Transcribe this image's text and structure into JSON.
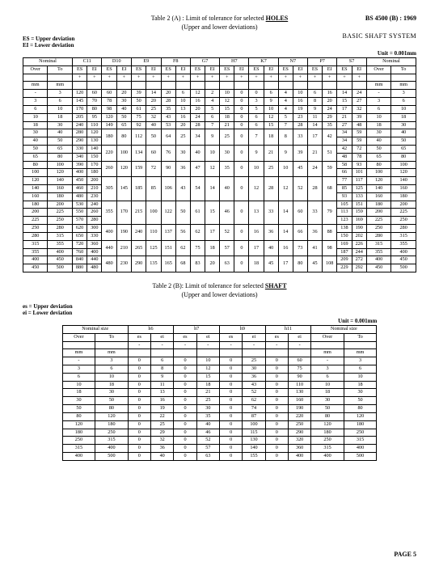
{
  "header": {
    "titleA_pre": "Table 2 (A) : Limit of tolerance for selected ",
    "titleA_bold": "HOLES",
    "titleB_pre": "Table 2 (B): Limit of tolerance for selected ",
    "titleB_bold": "SHAFT",
    "subtitle": "(Upper and lower deviations)",
    "bs": "BS 4500 (B) : 1969",
    "basic": "BASIC SHAFT SYSTEM",
    "ES": "ES = Upper deviation",
    "EI": "EI = Lower deviation",
    "es": "es = Upper deviation",
    "ei": "ei = Lower deviation",
    "unit": "Unit = 0.001mm",
    "page": "PAGE 5",
    "nominal": "Nominal",
    "nominal_size": "Nominal size",
    "over": "Over",
    "to": "To",
    "mm": "mm",
    "ESh": "ES",
    "EIh": "EI",
    "esh": "es",
    "eih": "ei"
  },
  "tableA": {
    "grades": [
      "C11",
      "D10",
      "E9",
      "F8",
      "G7",
      "H7",
      "K7",
      "N7",
      "P7",
      "S7"
    ],
    "signs": [
      [
        "+",
        "+"
      ],
      [
        "+",
        "+"
      ],
      [
        "+",
        "+"
      ],
      [
        "+",
        "+"
      ],
      [
        "+",
        "+"
      ],
      [
        "+",
        "+"
      ],
      [
        "+",
        "+"
      ],
      [
        "+",
        "+"
      ],
      [
        "+",
        "+"
      ],
      [
        "+",
        "+"
      ]
    ],
    "ranges": [
      [
        "-",
        "3"
      ],
      [
        "3",
        "6"
      ],
      [
        "6",
        "10"
      ],
      [
        "10",
        "18"
      ],
      [
        "18",
        "30"
      ],
      [
        "30",
        "40"
      ],
      [
        "40",
        "50"
      ],
      [
        "50",
        "65"
      ],
      [
        "65",
        "80"
      ],
      [
        "80",
        "100"
      ],
      [
        "100",
        "120"
      ],
      [
        "120",
        "140"
      ],
      [
        "140",
        "160"
      ],
      [
        "160",
        "180"
      ],
      [
        "180",
        "200"
      ],
      [
        "200",
        "225"
      ],
      [
        "225",
        "250"
      ],
      [
        "250",
        "280"
      ],
      [
        "280",
        "315"
      ],
      [
        "315",
        "355"
      ],
      [
        "355",
        "400"
      ],
      [
        "400",
        "450"
      ],
      [
        "450",
        "500"
      ]
    ],
    "cells": [
      [
        "120",
        "60",
        "60",
        "20",
        "39",
        "14",
        "20",
        "6",
        "12",
        "2",
        "10",
        "0",
        "0",
        "6",
        "4",
        "10",
        "6",
        "16",
        "14",
        "24"
      ],
      [
        "145",
        "70",
        "78",
        "30",
        "50",
        "20",
        "28",
        "10",
        "16",
        "4",
        "12",
        "0",
        "3",
        "9",
        "4",
        "16",
        "8",
        "20",
        "15",
        "27"
      ],
      [
        "170",
        "80",
        "98",
        "40",
        "61",
        "25",
        "35",
        "13",
        "20",
        "5",
        "15",
        "0",
        "5",
        "10",
        "4",
        "19",
        "9",
        "24",
        "17",
        "32"
      ],
      [
        "205",
        "95",
        "120",
        "50",
        "75",
        "32",
        "43",
        "16",
        "24",
        "6",
        "18",
        "0",
        "6",
        "12",
        "5",
        "23",
        "11",
        "29",
        "21",
        "39"
      ],
      [
        "240",
        "110",
        "149",
        "65",
        "92",
        "40",
        "53",
        "20",
        "28",
        "7",
        "21",
        "0",
        "6",
        "15",
        "7",
        "28",
        "14",
        "35",
        "27",
        "48"
      ],
      [
        "280",
        "120",
        "",
        "",
        "",
        "",
        "",
        "",
        "",
        "",
        "",
        "",
        "",
        "",
        "",
        "",
        "",
        "",
        "",
        ""
      ],
      [
        "290",
        "130",
        "",
        "",
        "",
        "",
        "",
        "",
        "",
        "",
        "",
        "",
        "",
        "",
        "",
        "",
        "",
        "",
        "",
        ""
      ],
      [
        "330",
        "140",
        "",
        "",
        "",
        "",
        "",
        "",
        "",
        "",
        "",
        "",
        "",
        "",
        "",
        "",
        "",
        "",
        "",
        ""
      ],
      [
        "340",
        "150",
        "",
        "",
        "",
        "",
        "",
        "",
        "",
        "",
        "",
        "",
        "",
        "",
        "",
        "",
        "",
        "",
        "",
        ""
      ],
      [
        "390",
        "170",
        "",
        "",
        "",
        "",
        "",
        "",
        "",
        "",
        "",
        "",
        "",
        "",
        "",
        "",
        "",
        "",
        "",
        ""
      ],
      [
        "400",
        "180",
        "",
        "",
        "",
        "",
        "",
        "",
        "",
        "",
        "",
        "",
        "",
        "",
        "",
        "",
        "",
        "",
        "",
        ""
      ],
      [
        "450",
        "200",
        "",
        "",
        "",
        "",
        "",
        "",
        "",
        "",
        "",
        "",
        "",
        "",
        "",
        "",
        "",
        "",
        "",
        ""
      ],
      [
        "460",
        "210",
        "",
        "",
        "",
        "",
        "",
        "",
        "",
        "",
        "",
        "",
        "",
        "",
        "",
        "",
        "",
        "",
        "",
        ""
      ],
      [
        "480",
        "230",
        "",
        "",
        "",
        "",
        "",
        "",
        "",
        "",
        "",
        "",
        "",
        "",
        "",
        "",
        "",
        "",
        "",
        ""
      ],
      [
        "530",
        "240",
        "",
        "",
        "",
        "",
        "",
        "",
        "",
        "",
        "",
        "",
        "",
        "",
        "",
        "",
        "",
        "",
        "",
        ""
      ],
      [
        "550",
        "260",
        "",
        "",
        "",
        "",
        "",
        "",
        "",
        "",
        "",
        "",
        "",
        "",
        "",
        "",
        "",
        "",
        "",
        ""
      ],
      [
        "570",
        "280",
        "",
        "",
        "",
        "",
        "",
        "",
        "",
        "",
        "",
        "",
        "",
        "",
        "",
        "",
        "",
        "",
        "",
        ""
      ],
      [
        "620",
        "300",
        "",
        "",
        "",
        "",
        "",
        "",
        "",
        "",
        "",
        "",
        "",
        "",
        "",
        "",
        "",
        "",
        "",
        ""
      ],
      [
        "650",
        "330",
        "",
        "",
        "",
        "",
        "",
        "",
        "",
        "",
        "",
        "",
        "",
        "",
        "",
        "",
        "",
        "",
        "",
        ""
      ],
      [
        "720",
        "360",
        "",
        "",
        "",
        "",
        "",
        "",
        "",
        "",
        "",
        "",
        "",
        "",
        "",
        "",
        "",
        "",
        "",
        ""
      ],
      [
        "760",
        "400",
        "",
        "",
        "",
        "",
        "",
        "",
        "",
        "",
        "",
        "",
        "",
        "",
        "",
        "",
        "",
        "",
        "",
        ""
      ],
      [
        "840",
        "440",
        "",
        "",
        "",
        "",
        "",
        "",
        "",
        "",
        "",
        "",
        "",
        "",
        "",
        "",
        "",
        "",
        "",
        ""
      ],
      [
        "880",
        "480",
        "",
        "",
        "",
        "",
        "",
        "",
        "",
        "",
        "",
        "",
        "",
        "",
        "",
        "",
        "",
        "",
        "",
        ""
      ]
    ],
    "merged": {
      "5": {
        "D10": [
          "180",
          "80"
        ],
        "E9": [
          "112",
          "50"
        ],
        "F8": [
          "64",
          "25"
        ],
        "G7": [
          "34",
          "9"
        ],
        "H7": [
          "25",
          "0"
        ],
        "K7": [
          "7",
          "18"
        ],
        "N7": [
          "8",
          "33"
        ],
        "P7": [
          "17",
          "42"
        ],
        "S7": [
          "34",
          "59"
        ]
      },
      "7": {
        "D10": [
          "220",
          "100"
        ],
        "E9": [
          "134",
          "60"
        ],
        "F8": [
          "76",
          "30"
        ],
        "G7": [
          "40",
          "10"
        ],
        "H7": [
          "30",
          "0"
        ],
        "K7": [
          "9",
          "21"
        ],
        "N7": [
          "9",
          "39"
        ],
        "P7": [
          "21",
          "51"
        ]
      },
      "9": {
        "D10": [
          "260",
          "120"
        ],
        "E9": [
          "159",
          "72"
        ],
        "F8": [
          "90",
          "36"
        ],
        "G7": [
          "47",
          "12"
        ],
        "H7": [
          "35",
          "0"
        ],
        "K7": [
          "10",
          "25"
        ],
        "N7": [
          "10",
          "45"
        ],
        "P7": [
          "24",
          "59"
        ]
      },
      "11": {
        "D10": [
          "305",
          "145"
        ],
        "E9": [
          "185",
          "85"
        ],
        "F8": [
          "106",
          "43"
        ],
        "G7": [
          "54",
          "14"
        ],
        "H7": [
          "40",
          "0"
        ],
        "K7": [
          "12",
          "28"
        ],
        "N7": [
          "12",
          "52"
        ],
        "P7": [
          "28",
          "68"
        ]
      },
      "14": {
        "D10": [
          "355",
          "170"
        ],
        "E9": [
          "215",
          "100"
        ],
        "F8": [
          "122",
          "50"
        ],
        "G7": [
          "61",
          "15"
        ],
        "H7": [
          "46",
          "0"
        ],
        "K7": [
          "13",
          "33"
        ],
        "N7": [
          "14",
          "60"
        ],
        "P7": [
          "33",
          "79"
        ]
      },
      "17": {
        "D10": [
          "400",
          "190"
        ],
        "E9": [
          "240",
          "110"
        ],
        "F8": [
          "137",
          "56"
        ],
        "G7": [
          "62",
          "17"
        ],
        "H7": [
          "52",
          "0"
        ],
        "K7": [
          "16",
          "36"
        ],
        "N7": [
          "14",
          "66"
        ],
        "P7": [
          "36",
          "88"
        ]
      },
      "19": {
        "D10": [
          "440",
          "210"
        ],
        "E9": [
          "265",
          "125"
        ],
        "F8": [
          "151",
          "62"
        ],
        "G7": [
          "75",
          "18"
        ],
        "H7": [
          "57",
          "0"
        ],
        "K7": [
          "17",
          "40"
        ],
        "N7": [
          "16",
          "73"
        ],
        "P7": [
          "41",
          "98"
        ]
      },
      "21": {
        "D10": [
          "480",
          "230"
        ],
        "E9": [
          "290",
          "135"
        ],
        "F8": [
          "165",
          "68"
        ],
        "G7": [
          "83",
          "20"
        ],
        "H7": [
          "63",
          "0"
        ],
        "K7": [
          "18",
          "45"
        ],
        "N7": [
          "17",
          "80"
        ],
        "P7": [
          "45",
          "108"
        ]
      }
    },
    "s7": {
      "5": [
        "34",
        "59"
      ],
      "6": [
        "34",
        "59"
      ],
      "7": [
        "42",
        "72"
      ],
      "8": [
        "48",
        "78"
      ],
      "9": [
        "58",
        "93"
      ],
      "10": [
        "66",
        "101"
      ],
      "11": [
        "77",
        "117"
      ],
      "12": [
        "85",
        "125"
      ],
      "13": [
        "93",
        "133"
      ],
      "14": [
        "105",
        "151"
      ],
      "15": [
        "113",
        "159"
      ],
      "16": [
        "123",
        "169"
      ],
      "17": [
        "138",
        "190"
      ],
      "18": [
        "150",
        "202"
      ],
      "19": [
        "169",
        "226"
      ],
      "20": [
        "187",
        "244"
      ],
      "21": [
        "209",
        "272"
      ],
      "22": [
        "229",
        "292"
      ]
    }
  },
  "tableB": {
    "grades": [
      "h6",
      "h7",
      "h9",
      "h11"
    ],
    "ranges": [
      [
        "-",
        "3"
      ],
      [
        "3",
        "6"
      ],
      [
        "6",
        "10"
      ],
      [
        "10",
        "18"
      ],
      [
        "18",
        "30"
      ],
      [
        "30",
        "50"
      ],
      [
        "50",
        "80"
      ],
      [
        "80",
        "120"
      ],
      [
        "120",
        "180"
      ],
      [
        "180",
        "250"
      ],
      [
        "250",
        "315"
      ],
      [
        "315",
        "400"
      ],
      [
        "400",
        "500"
      ]
    ],
    "rows": [
      [
        "0",
        "6",
        "0",
        "10",
        "0",
        "25",
        "0",
        "60"
      ],
      [
        "0",
        "8",
        "0",
        "12",
        "0",
        "30",
        "0",
        "75"
      ],
      [
        "0",
        "9",
        "0",
        "15",
        "0",
        "36",
        "0",
        "90"
      ],
      [
        "0",
        "11",
        "0",
        "18",
        "0",
        "43",
        "0",
        "110"
      ],
      [
        "0",
        "13",
        "0",
        "21",
        "0",
        "52",
        "0",
        "130"
      ],
      [
        "0",
        "16",
        "0",
        "25",
        "0",
        "62",
        "0",
        "160"
      ],
      [
        "0",
        "19",
        "0",
        "30",
        "0",
        "74",
        "0",
        "190"
      ],
      [
        "0",
        "22",
        "0",
        "35",
        "0",
        "87",
        "0",
        "220"
      ],
      [
        "0",
        "25",
        "0",
        "40",
        "0",
        "100",
        "0",
        "250"
      ],
      [
        "0",
        "29",
        "0",
        "46",
        "0",
        "115",
        "0",
        "290"
      ],
      [
        "0",
        "32",
        "0",
        "52",
        "0",
        "130",
        "0",
        "320"
      ],
      [
        "0",
        "36",
        "0",
        "57",
        "0",
        "140",
        "0",
        "360"
      ],
      [
        "0",
        "40",
        "0",
        "63",
        "0",
        "155",
        "0",
        "400"
      ]
    ]
  },
  "colors": {
    "text": "#000000",
    "bg": "#ffffff"
  }
}
